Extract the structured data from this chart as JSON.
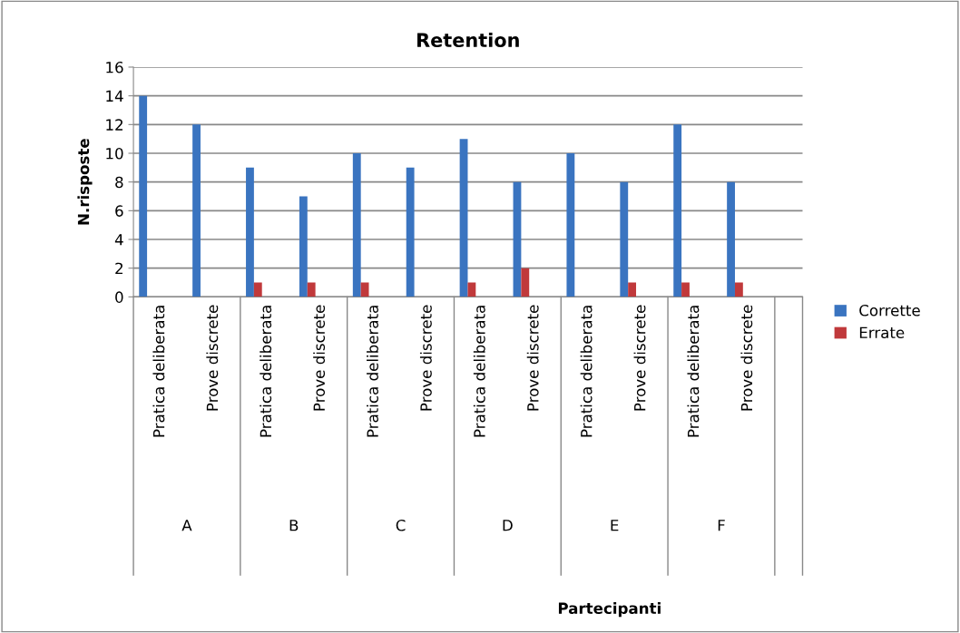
{
  "chart_data": {
    "type": "bar",
    "title": "Retention",
    "ylabel": "N.risposte",
    "categories": [
      "Pratica deliberata",
      "Prove discrete",
      "Pratica deliberata",
      "Prove discrete",
      "Pratica deliberata",
      "Prove discrete",
      "Pratica deliberata",
      "Prove discrete",
      "Pratica deliberata",
      "Prove discrete",
      "Pratica deliberata",
      "Prove discrete"
    ],
    "annotations": [
      "A",
      "B",
      "C",
      "D",
      "E",
      "F",
      "Partecipanti"
    ],
    "series": [
      {
        "name": "Corrette",
        "color": "#3a74c0",
        "values": [
          14,
          12,
          9,
          7,
          10,
          9,
          11,
          8,
          10,
          8,
          12,
          8
        ]
      },
      {
        "name": "Errate",
        "color": "#c0393b",
        "values": [
          0,
          0,
          1,
          1,
          1,
          0,
          1,
          2,
          0,
          1,
          1,
          1
        ]
      }
    ],
    "ylim": [
      0,
      16
    ],
    "yticks": [
      0,
      2,
      4,
      6,
      8,
      10,
      12,
      14,
      16
    ],
    "grid": "y",
    "legend": "right"
  }
}
